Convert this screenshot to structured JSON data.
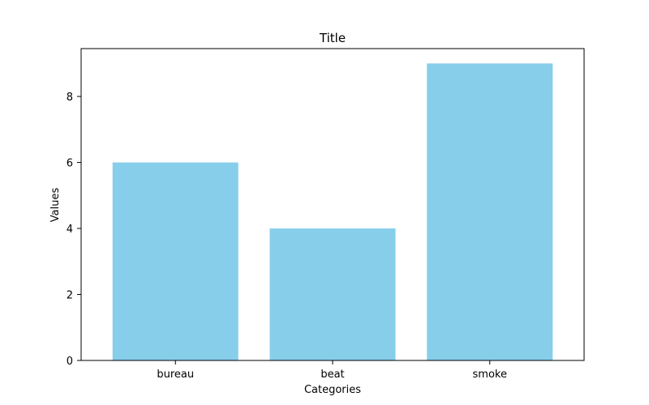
{
  "chart_data": {
    "type": "bar",
    "title": "Title",
    "xlabel": "Categories",
    "ylabel": "Values",
    "categories": [
      "bureau",
      "beat",
      "smoke"
    ],
    "values": [
      6,
      4,
      9
    ],
    "ylim": [
      0,
      9.45
    ],
    "yticks": [
      0,
      2,
      4,
      6,
      8
    ],
    "grid": false,
    "bar_color": "#87CEEB"
  }
}
